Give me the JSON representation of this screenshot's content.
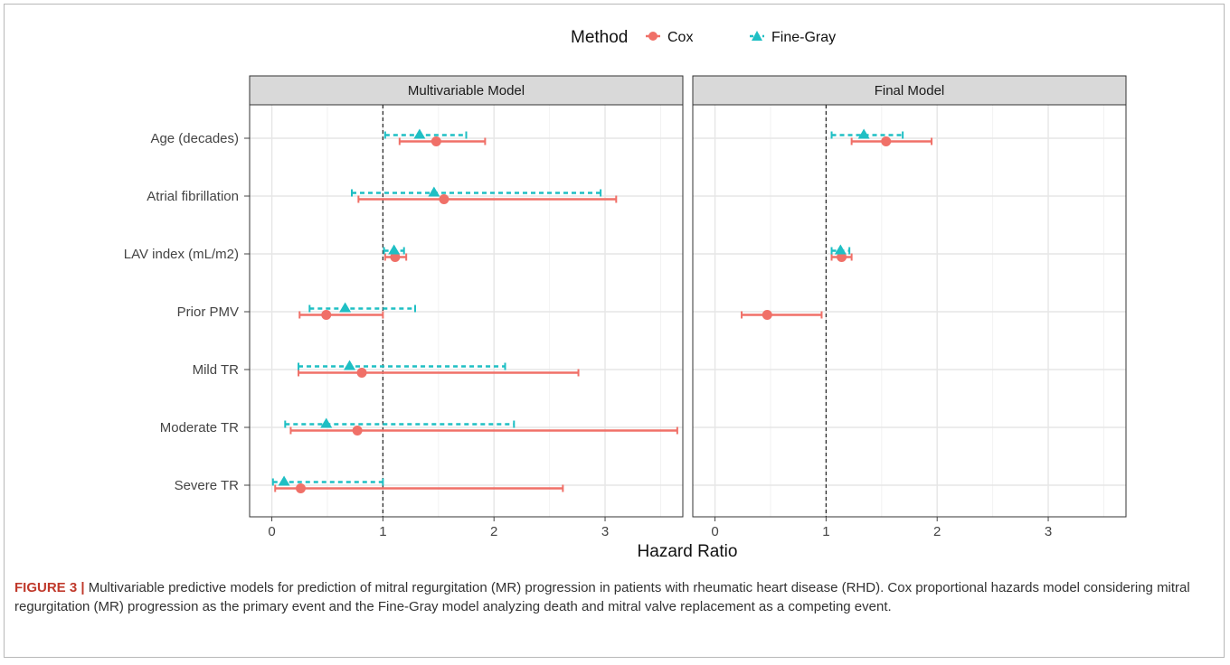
{
  "figure": {
    "caption_label": "FIGURE 3 |",
    "caption_text": " Multivariable predictive models for prediction of mitral regurgitation (MR) progression in patients with rheumatic heart disease (RHD). Cox proportional hazards model considering mitral regurgitation (MR) progression as the primary event and the Fine-Gray model analyzing death and mitral valve replacement as a competing event."
  },
  "chart_data": {
    "type": "forest",
    "xlabel": "Hazard Ratio",
    "xlim": [
      -0.2,
      3.7
    ],
    "xticks": [
      0,
      1,
      2,
      3
    ],
    "reference_line": 1,
    "grid": true,
    "legend": {
      "title": "Method",
      "position": "top",
      "entries": [
        {
          "label": "Cox",
          "color": "#F07068",
          "marker": "circle",
          "line": "solid"
        },
        {
          "label": "Fine-Gray",
          "color": "#1FBFC4",
          "marker": "triangle",
          "line": "dashed"
        }
      ]
    },
    "categories": [
      "Age (decades)",
      "Atrial fibrillation",
      "LAV index (mL/m2)",
      "Prior PMV",
      "Mild TR",
      "Moderate TR",
      "Severe TR"
    ],
    "panels": [
      {
        "title": "Multivariable Model",
        "series": [
          {
            "name": "Cox",
            "points": [
              {
                "category": "Age (decades)",
                "est": 1.48,
                "lo": 1.15,
                "hi": 1.92
              },
              {
                "category": "Atrial fibrillation",
                "est": 1.55,
                "lo": 0.78,
                "hi": 3.1
              },
              {
                "category": "LAV index (mL/m2)",
                "est": 1.11,
                "lo": 1.02,
                "hi": 1.21
              },
              {
                "category": "Prior PMV",
                "est": 0.49,
                "lo": 0.25,
                "hi": 1.0
              },
              {
                "category": "Mild TR",
                "est": 0.81,
                "lo": 0.24,
                "hi": 2.76
              },
              {
                "category": "Moderate TR",
                "est": 0.77,
                "lo": 0.17,
                "hi": 3.65
              },
              {
                "category": "Severe TR",
                "est": 0.26,
                "lo": 0.03,
                "hi": 2.62
              }
            ]
          },
          {
            "name": "Fine-Gray",
            "points": [
              {
                "category": "Age (decades)",
                "est": 1.33,
                "lo": 1.02,
                "hi": 1.75
              },
              {
                "category": "Atrial fibrillation",
                "est": 1.46,
                "lo": 0.72,
                "hi": 2.96
              },
              {
                "category": "LAV index (mL/m2)",
                "est": 1.1,
                "lo": 1.01,
                "hi": 1.19
              },
              {
                "category": "Prior PMV",
                "est": 0.66,
                "lo": 0.34,
                "hi": 1.29
              },
              {
                "category": "Mild TR",
                "est": 0.7,
                "lo": 0.24,
                "hi": 2.1
              },
              {
                "category": "Moderate TR",
                "est": 0.49,
                "lo": 0.12,
                "hi": 2.18
              },
              {
                "category": "Severe TR",
                "est": 0.11,
                "lo": 0.01,
                "hi": 1.0
              }
            ]
          }
        ]
      },
      {
        "title": "Final Model",
        "series": [
          {
            "name": "Cox",
            "points": [
              {
                "category": "Age (decades)",
                "est": 1.54,
                "lo": 1.23,
                "hi": 1.95
              },
              {
                "category": "LAV index (mL/m2)",
                "est": 1.14,
                "lo": 1.05,
                "hi": 1.23
              },
              {
                "category": "Prior PMV",
                "est": 0.47,
                "lo": 0.24,
                "hi": 0.96
              }
            ]
          },
          {
            "name": "Fine-Gray",
            "points": [
              {
                "category": "Age (decades)",
                "est": 1.34,
                "lo": 1.05,
                "hi": 1.69
              },
              {
                "category": "LAV index (mL/m2)",
                "est": 1.13,
                "lo": 1.05,
                "hi": 1.21
              }
            ]
          }
        ]
      }
    ]
  }
}
